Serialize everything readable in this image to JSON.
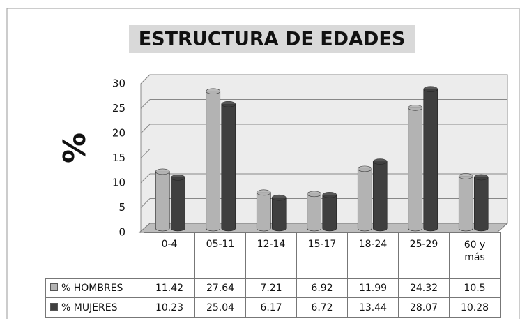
{
  "chart_data": {
    "type": "bar",
    "title": "ESTRUCTURA DE EDADES",
    "y_label": "%",
    "categories": [
      "0-4",
      "05-11",
      "12-14",
      "15-17",
      "18-24",
      "25-29",
      "60 y más"
    ],
    "series": [
      {
        "name": "% HOMBRES",
        "color": "#b3b3b3",
        "values": [
          11.42,
          27.64,
          7.21,
          6.92,
          11.99,
          24.32,
          10.5
        ]
      },
      {
        "name": "% MUJERES",
        "color": "#3f3f3f",
        "values": [
          10.23,
          25.04,
          6.17,
          6.72,
          13.44,
          28.07,
          10.28
        ]
      }
    ],
    "ylim": [
      0,
      30
    ],
    "yticks": [
      0,
      5,
      10,
      15,
      20,
      25,
      30
    ],
    "grid": true
  }
}
